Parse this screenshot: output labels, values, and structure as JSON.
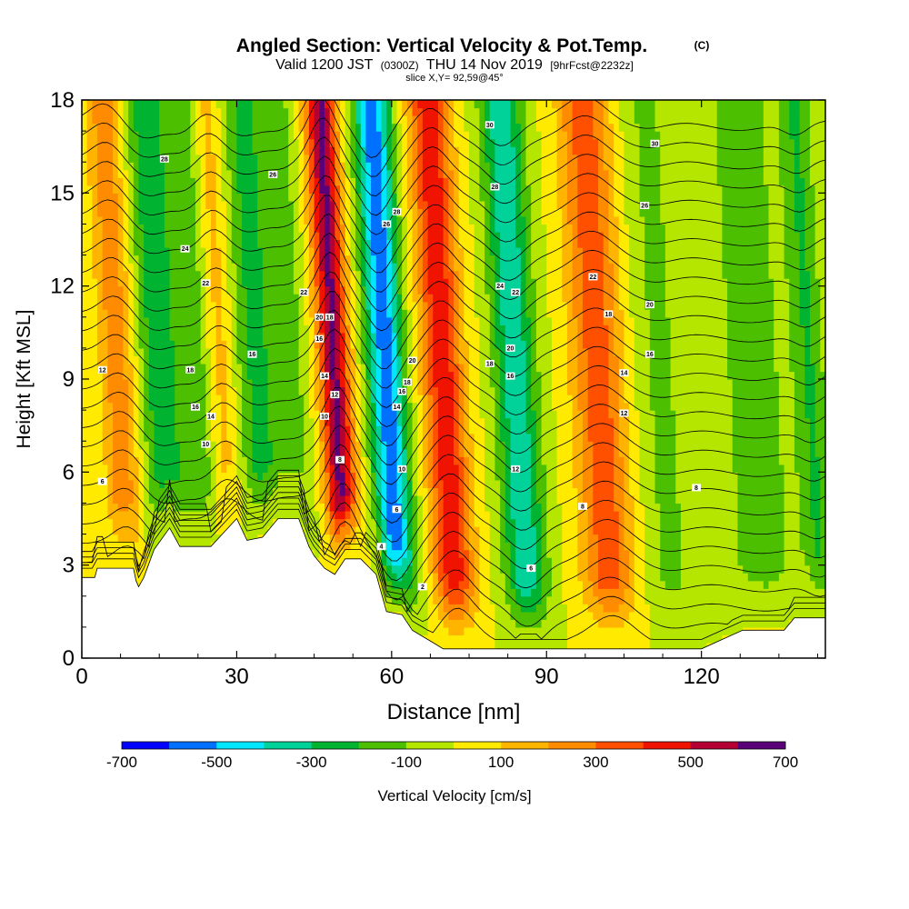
{
  "chart_data": {
    "type": "heatmap",
    "title": "Angled Section: Vertical Velocity & Pot.Temp.",
    "title_mark": "(C)",
    "subtitle_parts": [
      "Valid 1200 JST",
      "(0300Z)",
      "THU 14 Nov 2019",
      "[9hrFcst@2232z]"
    ],
    "slice_label": "slice X,Y= 92,59@45°",
    "xlabel": "Distance [nm]",
    "ylabel": "Height [Kft MSL]",
    "xlim": [
      0,
      144
    ],
    "ylim": [
      0,
      18
    ],
    "x_ticks": [
      0,
      30,
      60,
      90,
      120
    ],
    "y_ticks": [
      0,
      3,
      6,
      9,
      12,
      15,
      18
    ],
    "colorbar": {
      "label": "Vertical Velocity [cm/s]",
      "range": [
        -700,
        700
      ],
      "step": 100,
      "tick_labels": [
        -700,
        -500,
        -300,
        -100,
        100,
        300,
        500,
        700
      ],
      "colors": [
        "#0000ff",
        "#0070ff",
        "#00e6ff",
        "#00d29a",
        "#00b432",
        "#4cc000",
        "#b4e600",
        "#ffea00",
        "#ffb400",
        "#ff8c00",
        "#ff5000",
        "#f01400",
        "#b40032",
        "#5a0078"
      ]
    },
    "plumes": [
      {
        "x": 7,
        "w": 3.5,
        "v": 260
      },
      {
        "x": 15,
        "w": 4,
        "v": -260
      },
      {
        "x": 22,
        "w": 3.5,
        "v": -180
      },
      {
        "x": 27,
        "w": 3,
        "v": 160
      },
      {
        "x": 34,
        "w": 4.5,
        "v": -230
      },
      {
        "x": 41,
        "w": 3,
        "v": -120
      },
      {
        "x": 49,
        "w": 3,
        "v": 620
      },
      {
        "x": 59,
        "w": 3.5,
        "v": -560
      },
      {
        "x": 70,
        "w": 4,
        "v": 470
      },
      {
        "x": 84,
        "w": 4,
        "v": -380
      },
      {
        "x": 100,
        "w": 5,
        "v": 360
      },
      {
        "x": 112,
        "w": 5,
        "v": -120
      },
      {
        "x": 130,
        "w": 7,
        "v": -150
      },
      {
        "x": 141,
        "w": 3,
        "v": -200
      }
    ],
    "terrain": {
      "x": [
        0,
        2.5,
        3,
        10,
        10.5,
        11,
        12,
        14,
        17,
        19,
        25,
        30,
        32,
        35,
        38,
        42,
        44,
        45,
        47,
        49,
        51,
        54,
        57,
        59,
        62,
        64,
        66,
        68,
        70,
        74,
        80,
        88,
        95,
        104,
        113,
        120,
        124,
        128,
        136,
        138,
        144
      ],
      "y": [
        2.6,
        2.6,
        2.9,
        2.9,
        2.5,
        2.3,
        2.6,
        3.5,
        4.2,
        3.6,
        3.6,
        4.5,
        3.8,
        3.9,
        4.5,
        4.5,
        3.6,
        3.3,
        2.9,
        2.7,
        3.2,
        3.2,
        2.7,
        1.5,
        1.4,
        0.9,
        0.7,
        0.5,
        0.3,
        0.3,
        0.3,
        0.3,
        0.3,
        0.3,
        0.3,
        0.3,
        0.6,
        0.9,
        0.9,
        1.3,
        1.3
      ]
    },
    "isentropes": {
      "levels": [
        2,
        4,
        6,
        8,
        10,
        12,
        14,
        16,
        18,
        20,
        22,
        24,
        26,
        28,
        30,
        32,
        34,
        36,
        38,
        40,
        42,
        44,
        46,
        48,
        50,
        52,
        54,
        56
      ],
      "contour_labels": [
        {
          "x": 4,
          "h": 9.3,
          "text": "12"
        },
        {
          "x": 4,
          "h": 5.7,
          "text": "6"
        },
        {
          "x": 16,
          "h": 16.1,
          "text": "28"
        },
        {
          "x": 20,
          "h": 13.2,
          "text": "24"
        },
        {
          "x": 21,
          "h": 9.3,
          "text": "18"
        },
        {
          "x": 22,
          "h": 8.1,
          "text": "16"
        },
        {
          "x": 24,
          "h": 12.1,
          "text": "22"
        },
        {
          "x": 25,
          "h": 7.8,
          "text": "14"
        },
        {
          "x": 24,
          "h": 6.9,
          "text": "10"
        },
        {
          "x": 33,
          "h": 9.8,
          "text": "16"
        },
        {
          "x": 37,
          "h": 15.6,
          "text": "26"
        },
        {
          "x": 43,
          "h": 11.8,
          "text": "22"
        },
        {
          "x": 46,
          "h": 11,
          "text": "20"
        },
        {
          "x": 48,
          "h": 11,
          "text": "18"
        },
        {
          "x": 46,
          "h": 10.3,
          "text": "16"
        },
        {
          "x": 47,
          "h": 9.1,
          "text": "14"
        },
        {
          "x": 49,
          "h": 8.5,
          "text": "12"
        },
        {
          "x": 47,
          "h": 7.8,
          "text": "10"
        },
        {
          "x": 50,
          "h": 6.4,
          "text": "8"
        },
        {
          "x": 59,
          "h": 14,
          "text": "26"
        },
        {
          "x": 61,
          "h": 14.4,
          "text": "28"
        },
        {
          "x": 64,
          "h": 9.6,
          "text": "20"
        },
        {
          "x": 63,
          "h": 8.9,
          "text": "18"
        },
        {
          "x": 62,
          "h": 8.6,
          "text": "16"
        },
        {
          "x": 61,
          "h": 8.1,
          "text": "14"
        },
        {
          "x": 62,
          "h": 6.1,
          "text": "10"
        },
        {
          "x": 61,
          "h": 4.8,
          "text": "6"
        },
        {
          "x": 58,
          "h": 3.6,
          "text": "4"
        },
        {
          "x": 66,
          "h": 2.3,
          "text": "2"
        },
        {
          "x": 79,
          "h": 17.2,
          "text": "30"
        },
        {
          "x": 80,
          "h": 15.2,
          "text": "28"
        },
        {
          "x": 81,
          "h": 12,
          "text": "24"
        },
        {
          "x": 84,
          "h": 11.8,
          "text": "22"
        },
        {
          "x": 83,
          "h": 10,
          "text": "20"
        },
        {
          "x": 79,
          "h": 9.5,
          "text": "18"
        },
        {
          "x": 83,
          "h": 9.1,
          "text": "16"
        },
        {
          "x": 84,
          "h": 6.1,
          "text": "12"
        },
        {
          "x": 87,
          "h": 2.9,
          "text": "6"
        },
        {
          "x": 97,
          "h": 4.9,
          "text": "8"
        },
        {
          "x": 99,
          "h": 12.3,
          "text": "22"
        },
        {
          "x": 102,
          "h": 11.1,
          "text": "18"
        },
        {
          "x": 105,
          "h": 9.2,
          "text": "14"
        },
        {
          "x": 105,
          "h": 7.9,
          "text": "12"
        },
        {
          "x": 111,
          "h": 16.6,
          "text": "30"
        },
        {
          "x": 109,
          "h": 14.6,
          "text": "26"
        },
        {
          "x": 110,
          "h": 11.4,
          "text": "20"
        },
        {
          "x": 110,
          "h": 9.8,
          "text": "16"
        },
        {
          "x": 119,
          "h": 5.5,
          "text": "8"
        }
      ]
    }
  }
}
